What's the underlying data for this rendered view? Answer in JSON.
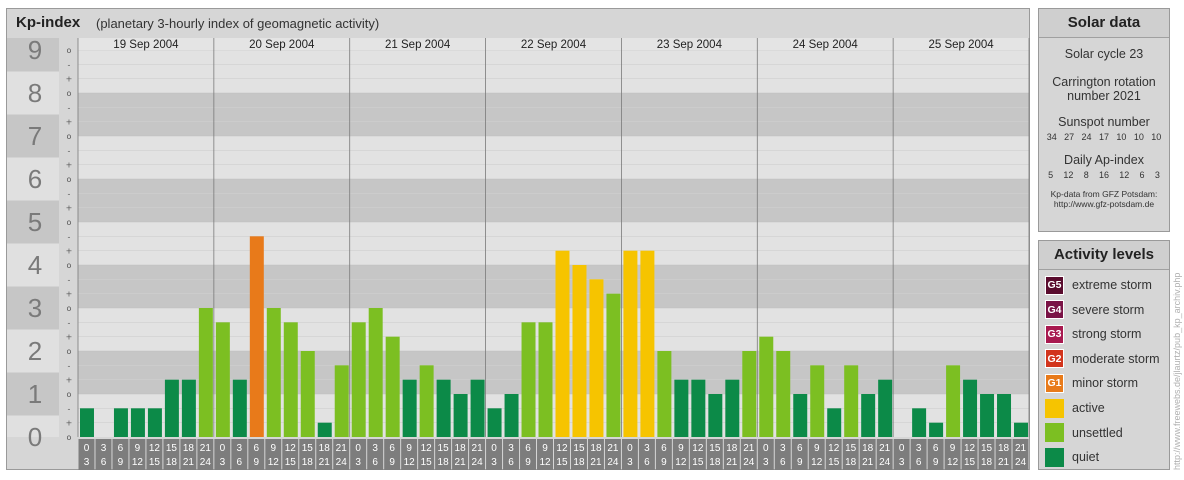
{
  "header": {
    "title": "Kp-index",
    "subtitle": "(planetary 3-hourly index of geomagnetic activity)"
  },
  "chart_data": {
    "type": "bar",
    "ylim": [
      0,
      9
    ],
    "y_tick_labels": [
      "0",
      "1",
      "2",
      "3",
      "4",
      "5",
      "6",
      "7",
      "8",
      "9"
    ],
    "minor_tick_labels": [
      "+",
      "o",
      "-"
    ],
    "days": [
      "19 Sep 2004",
      "20 Sep 2004",
      "21 Sep 2004",
      "22 Sep 2004",
      "23 Sep 2004",
      "24 Sep 2004",
      "25 Sep 2004"
    ],
    "interval_start_labels": [
      "0",
      "3",
      "6",
      "9",
      "12",
      "15",
      "18",
      "21"
    ],
    "interval_end_labels": [
      "3",
      "6",
      "9",
      "12",
      "15",
      "18",
      "21",
      "24"
    ],
    "values": [
      [
        0.667,
        0.0,
        0.667,
        0.667,
        0.667,
        1.333,
        1.333,
        3.0
      ],
      [
        2.667,
        1.333,
        4.667,
        3.0,
        2.667,
        2.0,
        0.333,
        1.667
      ],
      [
        2.667,
        3.0,
        2.333,
        1.333,
        1.667,
        1.333,
        1.0,
        1.333
      ],
      [
        0.667,
        1.0,
        2.667,
        2.667,
        4.333,
        4.0,
        3.667,
        3.333
      ],
      [
        4.333,
        4.333,
        2.0,
        1.333,
        1.333,
        1.0,
        1.333,
        2.0
      ],
      [
        2.333,
        2.0,
        1.0,
        1.667,
        0.667,
        1.667,
        1.0,
        1.333
      ],
      [
        0.0,
        0.667,
        0.333,
        1.667,
        1.333,
        1.0,
        1.0,
        0.333
      ]
    ]
  },
  "solar": {
    "title": "Solar data",
    "cycle": "Solar cycle 23",
    "carrington_line1": "Carrington rotation",
    "carrington_line2": "number 2021",
    "sunspot_label": "Sunspot number",
    "sunspot_values": [
      "34",
      "27",
      "24",
      "17",
      "10",
      "10",
      "10"
    ],
    "ap_label": "Daily Ap-index",
    "ap_values": [
      "5",
      "12",
      "8",
      "16",
      "12",
      "6",
      "3"
    ],
    "source_line1": "Kp-data from GFZ Potsdam:",
    "source_line2": "http://www.gfz-potsdam.de"
  },
  "activity": {
    "title": "Activity levels",
    "levels": [
      {
        "code": "G5",
        "label": "extreme storm",
        "color": "#5a0c2e"
      },
      {
        "code": "G4",
        "label": "severe storm",
        "color": "#7a1346"
      },
      {
        "code": "G3",
        "label": "strong storm",
        "color": "#a8194f"
      },
      {
        "code": "G2",
        "label": "moderate storm",
        "color": "#d2341c"
      },
      {
        "code": "G1",
        "label": "minor storm",
        "color": "#e87a1a"
      },
      {
        "code": "",
        "label": "active",
        "color": "#f6c400"
      },
      {
        "code": "",
        "label": "unsettled",
        "color": "#7cbf22"
      },
      {
        "code": "",
        "label": "quiet",
        "color": "#0c8a48"
      }
    ]
  },
  "side_url": "http://www.freewebs.de/jlaurtz/pub_kp_archiv.php"
}
